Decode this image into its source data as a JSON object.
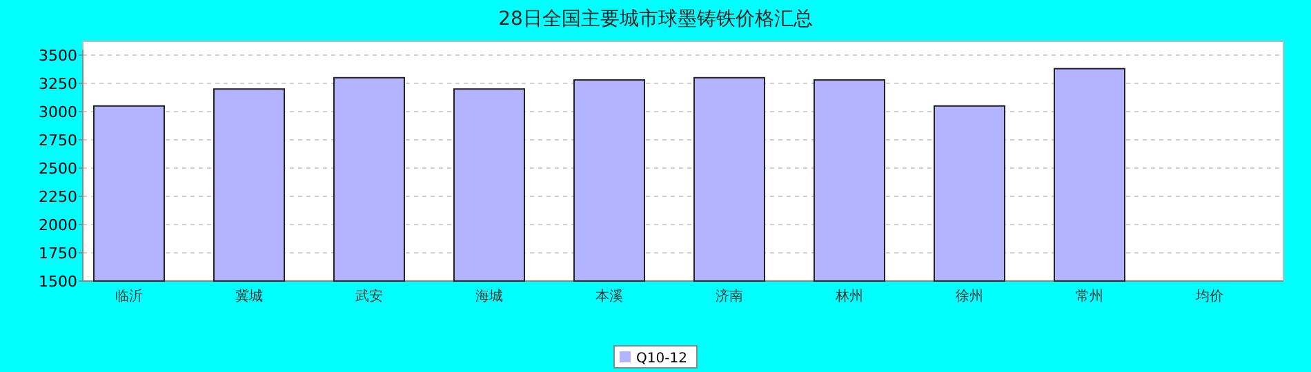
{
  "chart_data": {
    "type": "bar",
    "title": "28日全国主要城市球墨铸铁价格汇总",
    "categories": [
      "临沂",
      "冀城",
      "武安",
      "海城",
      "本溪",
      "济南",
      "林州",
      "徐州",
      "常州",
      "均价"
    ],
    "series": [
      {
        "name": "Q10-12",
        "color": "#b3b3ff",
        "values": [
          3050,
          3200,
          3300,
          3200,
          3280,
          3300,
          3280,
          3050,
          3380,
          null
        ]
      }
    ],
    "ylim": [
      1500,
      3500
    ],
    "yticks": [
      1500,
      1750,
      2000,
      2250,
      2500,
      2750,
      3000,
      3250,
      3500
    ],
    "grid": "y",
    "legend": "bottom"
  }
}
